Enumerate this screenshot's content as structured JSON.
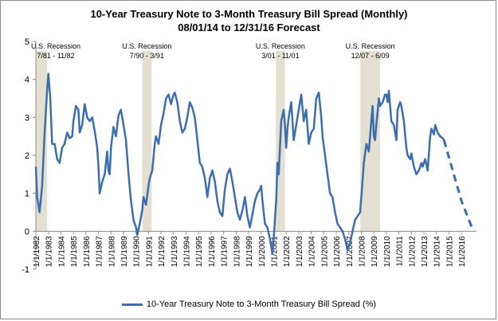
{
  "chart_data": {
    "type": "line",
    "title": "10-Year Treasury Note to 3-Month Treasury Bill Spread (Monthly)",
    "subtitle": "08/01/14 to 12/31/16 Forecast",
    "ylim": [
      -1,
      5
    ],
    "yticks": [
      "-1",
      "0",
      "1",
      "2",
      "3",
      "4",
      "5"
    ],
    "xlim": [
      1982.0,
      2017.2
    ],
    "xticks": [
      "1/1/1982",
      "1/1/1983",
      "1/1/1984",
      "1/1/1985",
      "1/1/1986",
      "1/1/1987",
      "1/1/1988",
      "1/1/1989",
      "1/1/1990",
      "1/1/1991",
      "1/1/1992",
      "1/1/1993",
      "1/1/1994",
      "1/1/1995",
      "1/1/1996",
      "1/1/1997",
      "1/1/1998",
      "1/1/1999",
      "1/1/2000",
      "1/1/2001",
      "1/1/2002",
      "1/1/2003",
      "1/1/2004",
      "1/1/2005",
      "1/1/2006",
      "1/1/2007",
      "1/1/2008",
      "1/1/2009",
      "1/1/2010",
      "1/1/2011",
      "1/1/2012",
      "1/1/2013",
      "1/1/2014",
      "1/1/2015",
      "1/1/2016"
    ],
    "legend_position": "bottom",
    "grid": false,
    "series": [
      {
        "name": "10-Year Treasury Note to 3-Month Treasury Bill Spread (%)",
        "color": "#3c6eae",
        "style": "solid",
        "points": [
          [
            1982.0,
            1.7
          ],
          [
            1982.1,
            0.9
          ],
          [
            1982.3,
            0.5
          ],
          [
            1982.5,
            1.2
          ],
          [
            1982.7,
            2.6
          ],
          [
            1982.9,
            3.7
          ],
          [
            1983.0,
            4.15
          ],
          [
            1983.15,
            3.5
          ],
          [
            1983.3,
            2.3
          ],
          [
            1983.5,
            2.3
          ],
          [
            1983.7,
            1.9
          ],
          [
            1983.9,
            1.8
          ],
          [
            1984.1,
            2.2
          ],
          [
            1984.3,
            2.3
          ],
          [
            1984.5,
            2.6
          ],
          [
            1984.7,
            2.45
          ],
          [
            1984.9,
            2.5
          ],
          [
            1985.0,
            2.9
          ],
          [
            1985.2,
            3.3
          ],
          [
            1985.4,
            3.2
          ],
          [
            1985.5,
            2.6
          ],
          [
            1985.7,
            2.8
          ],
          [
            1985.9,
            3.35
          ],
          [
            1986.1,
            3.0
          ],
          [
            1986.3,
            2.9
          ],
          [
            1986.5,
            3.0
          ],
          [
            1986.7,
            2.65
          ],
          [
            1986.9,
            2.2
          ],
          [
            1987.0,
            1.7
          ],
          [
            1987.1,
            1.0
          ],
          [
            1987.3,
            1.3
          ],
          [
            1987.5,
            1.5
          ],
          [
            1987.7,
            2.1
          ],
          [
            1987.8,
            1.6
          ],
          [
            1987.9,
            1.5
          ],
          [
            1988.0,
            2.2
          ],
          [
            1988.2,
            2.75
          ],
          [
            1988.4,
            2.5
          ],
          [
            1988.6,
            3.05
          ],
          [
            1988.8,
            3.2
          ],
          [
            1989.0,
            2.8
          ],
          [
            1989.2,
            2.4
          ],
          [
            1989.4,
            1.5
          ],
          [
            1989.6,
            0.8
          ],
          [
            1989.8,
            0.3
          ],
          [
            1990.0,
            0.1
          ],
          [
            1990.1,
            -0.1
          ],
          [
            1990.3,
            0.2
          ],
          [
            1990.5,
            0.55
          ],
          [
            1990.6,
            0.9
          ],
          [
            1990.8,
            0.7
          ],
          [
            1991.0,
            1.2
          ],
          [
            1991.1,
            1.4
          ],
          [
            1991.3,
            1.6
          ],
          [
            1991.5,
            2.3
          ],
          [
            1991.6,
            2.5
          ],
          [
            1991.8,
            2.3
          ],
          [
            1992.0,
            2.8
          ],
          [
            1992.2,
            3.1
          ],
          [
            1992.4,
            3.5
          ],
          [
            1992.6,
            3.6
          ],
          [
            1992.8,
            3.35
          ],
          [
            1993.0,
            3.6
          ],
          [
            1993.1,
            3.65
          ],
          [
            1993.3,
            3.4
          ],
          [
            1993.5,
            2.9
          ],
          [
            1993.7,
            2.6
          ],
          [
            1993.9,
            2.7
          ],
          [
            1994.1,
            3.0
          ],
          [
            1994.3,
            3.4
          ],
          [
            1994.5,
            3.25
          ],
          [
            1994.7,
            3.0
          ],
          [
            1994.9,
            2.4
          ],
          [
            1995.1,
            1.8
          ],
          [
            1995.3,
            1.7
          ],
          [
            1995.5,
            1.4
          ],
          [
            1995.7,
            0.9
          ],
          [
            1995.9,
            1.4
          ],
          [
            1996.1,
            1.6
          ],
          [
            1996.3,
            1.3
          ],
          [
            1996.5,
            0.8
          ],
          [
            1996.7,
            0.5
          ],
          [
            1996.9,
            0.4
          ],
          [
            1997.1,
            1.1
          ],
          [
            1997.3,
            1.5
          ],
          [
            1997.5,
            1.65
          ],
          [
            1997.7,
            1.3
          ],
          [
            1997.9,
            0.9
          ],
          [
            1998.1,
            0.5
          ],
          [
            1998.3,
            0.3
          ],
          [
            1998.5,
            0.55
          ],
          [
            1998.7,
            0.9
          ],
          [
            1998.9,
            0.4
          ],
          [
            1999.1,
            0.1
          ],
          [
            1999.3,
            0.45
          ],
          [
            1999.5,
            0.8
          ],
          [
            1999.7,
            1.0
          ],
          [
            1999.9,
            1.1
          ],
          [
            2000.0,
            1.2
          ],
          [
            2000.1,
            0.8
          ],
          [
            2000.3,
            0.2
          ],
          [
            2000.5,
            0.1
          ],
          [
            2000.7,
            -0.2
          ],
          [
            2000.9,
            -0.6
          ],
          [
            2001.0,
            -0.2
          ],
          [
            2001.2,
            0.8
          ],
          [
            2001.3,
            1.8
          ],
          [
            2001.4,
            1.5
          ],
          [
            2001.6,
            2.9
          ],
          [
            2001.8,
            3.2
          ],
          [
            2001.9,
            2.8
          ],
          [
            2002.0,
            2.2
          ],
          [
            2002.1,
            2.7
          ],
          [
            2002.2,
            3.0
          ],
          [
            2002.4,
            3.4
          ],
          [
            2002.6,
            2.4
          ],
          [
            2002.8,
            2.8
          ],
          [
            2003.0,
            3.2
          ],
          [
            2003.2,
            3.6
          ],
          [
            2003.4,
            2.9
          ],
          [
            2003.6,
            3.2
          ],
          [
            2003.8,
            2.3
          ],
          [
            2004.0,
            2.6
          ],
          [
            2004.2,
            2.7
          ],
          [
            2004.4,
            3.5
          ],
          [
            2004.6,
            3.65
          ],
          [
            2004.8,
            3.0
          ],
          [
            2004.9,
            2.5
          ],
          [
            2005.1,
            2.0
          ],
          [
            2005.3,
            1.5
          ],
          [
            2005.5,
            1.0
          ],
          [
            2005.7,
            0.9
          ],
          [
            2005.9,
            0.5
          ],
          [
            2006.1,
            0.2
          ],
          [
            2006.3,
            0.1
          ],
          [
            2006.5,
            0.0
          ],
          [
            2006.7,
            -0.2
          ],
          [
            2006.9,
            -0.5
          ],
          [
            2007.1,
            -0.3
          ],
          [
            2007.3,
            0.0
          ],
          [
            2007.5,
            0.3
          ],
          [
            2007.7,
            0.4
          ],
          [
            2007.9,
            0.5
          ],
          [
            2008.0,
            0.9
          ],
          [
            2008.2,
            1.8
          ],
          [
            2008.4,
            2.3
          ],
          [
            2008.6,
            2.1
          ],
          [
            2008.8,
            2.9
          ],
          [
            2008.9,
            3.3
          ],
          [
            2009.0,
            2.5
          ],
          [
            2009.1,
            2.4
          ],
          [
            2009.2,
            2.8
          ],
          [
            2009.4,
            3.5
          ],
          [
            2009.5,
            3.3
          ],
          [
            2009.7,
            3.4
          ],
          [
            2009.9,
            3.6
          ],
          [
            2010.0,
            3.6
          ],
          [
            2010.1,
            3.4
          ],
          [
            2010.2,
            3.7
          ],
          [
            2010.4,
            2.9
          ],
          [
            2010.6,
            2.8
          ],
          [
            2010.8,
            2.4
          ],
          [
            2010.9,
            3.2
          ],
          [
            2011.1,
            3.4
          ],
          [
            2011.2,
            3.3
          ],
          [
            2011.4,
            2.9
          ],
          [
            2011.6,
            2.2
          ],
          [
            2011.7,
            2.0
          ],
          [
            2011.9,
            1.9
          ],
          [
            2012.0,
            2.05
          ],
          [
            2012.2,
            1.7
          ],
          [
            2012.4,
            1.5
          ],
          [
            2012.6,
            1.6
          ],
          [
            2012.8,
            1.8
          ],
          [
            2012.9,
            1.7
          ],
          [
            2013.1,
            1.9
          ],
          [
            2013.3,
            1.6
          ],
          [
            2013.5,
            2.5
          ],
          [
            2013.6,
            2.7
          ],
          [
            2013.8,
            2.55
          ],
          [
            2013.9,
            2.8
          ],
          [
            2014.1,
            2.6
          ],
          [
            2014.3,
            2.5
          ],
          [
            2014.5,
            2.45
          ],
          [
            2014.6,
            2.4
          ]
        ]
      },
      {
        "name": "",
        "color": "#3c6eae",
        "style": "dashed",
        "points": [
          [
            2014.6,
            2.4
          ],
          [
            2015.3,
            1.6
          ],
          [
            2016.0,
            0.8
          ],
          [
            2016.95,
            0.0
          ]
        ]
      }
    ],
    "recessions": [
      {
        "label": "U.S. Recession",
        "dates": "7/81 - 11/82",
        "start": 1981.5,
        "end": 1982.9
      },
      {
        "label": "U.S. Recession",
        "dates": "7/90 - 3/91",
        "start": 1990.5,
        "end": 1991.25
      },
      {
        "label": "U.S. Recession",
        "dates": "3/01 - 11/01",
        "start": 2001.17,
        "end": 2001.9
      },
      {
        "label": "U.S. Recession",
        "dates": "12/07 - 6/09",
        "start": 2007.92,
        "end": 2009.5
      }
    ]
  },
  "colors": {
    "line": "#3c6eae",
    "recession_band": "#e3dfd1",
    "axis": "#8c8c8c"
  }
}
